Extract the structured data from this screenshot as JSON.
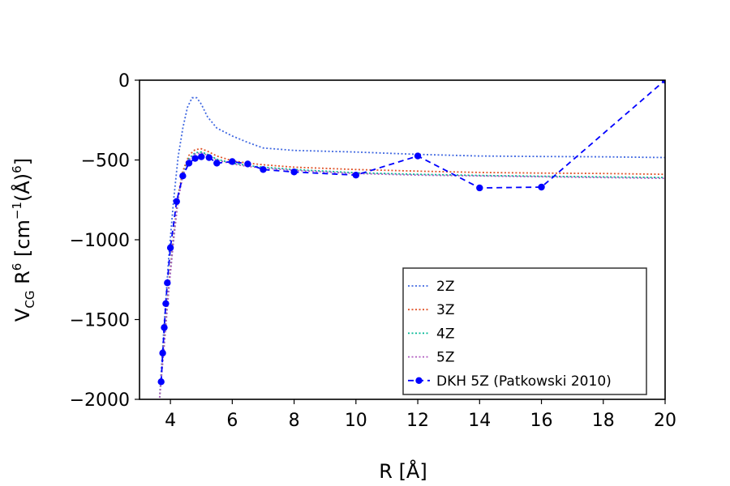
{
  "chart_data": {
    "type": "line",
    "xlabel": "R [Å]",
    "ylabel": "V_CG R^6 [cm^-1 (Å)^6]",
    "xlim": [
      3.0,
      20.0
    ],
    "ylim": [
      -2000,
      0
    ],
    "xticks": [
      4,
      6,
      8,
      10,
      12,
      14,
      16,
      18,
      20
    ],
    "yticks": [
      0,
      -500,
      -1000,
      -1500,
      -2000
    ],
    "xtick_labels": [
      "4",
      "6",
      "8",
      "10",
      "12",
      "14",
      "16",
      "18",
      "20"
    ],
    "ytick_labels": [
      "0",
      "−500",
      "−1000",
      "−1500",
      "−2000"
    ],
    "legend_position": "lower-right",
    "series": [
      {
        "name": "2Z",
        "color": "#4169e1",
        "style": "dotted",
        "x": [
          3.65,
          3.8,
          3.95,
          4.1,
          4.25,
          4.4,
          4.55,
          4.7,
          4.85,
          5.0,
          5.2,
          5.5,
          6.0,
          6.5,
          7.0,
          8.0,
          10.0,
          12.0,
          14.0,
          16.0,
          18.0,
          20.0
        ],
        "y": [
          -1990,
          -1520,
          -1100,
          -760,
          -480,
          -300,
          -170,
          -110,
          -110,
          -150,
          -230,
          -300,
          -350,
          -390,
          -425,
          -440,
          -450,
          -465,
          -475,
          -478,
          -480,
          -485
        ]
      },
      {
        "name": "3Z",
        "color": "#e0552b",
        "style": "dotted",
        "x": [
          3.65,
          3.8,
          3.95,
          4.1,
          4.25,
          4.4,
          4.6,
          4.8,
          5.0,
          5.2,
          5.5,
          6.0,
          6.5,
          7.0,
          8.0,
          10.0,
          12.0,
          14.0,
          16.0,
          18.0,
          20.0
        ],
        "y": [
          -1990,
          -1620,
          -1270,
          -980,
          -720,
          -570,
          -470,
          -435,
          -430,
          -445,
          -475,
          -505,
          -520,
          -530,
          -545,
          -560,
          -570,
          -578,
          -582,
          -585,
          -590
        ]
      },
      {
        "name": "4Z",
        "color": "#00b894",
        "style": "dotted",
        "x": [
          3.65,
          3.8,
          3.95,
          4.1,
          4.25,
          4.4,
          4.6,
          4.8,
          5.0,
          5.2,
          5.5,
          6.0,
          6.5,
          7.0,
          8.0,
          10.0,
          12.0,
          14.0,
          16.0,
          18.0,
          20.0
        ],
        "y": [
          -1990,
          -1650,
          -1300,
          -1000,
          -740,
          -590,
          -490,
          -455,
          -450,
          -465,
          -495,
          -520,
          -535,
          -545,
          -560,
          -580,
          -590,
          -597,
          -602,
          -606,
          -610
        ]
      },
      {
        "name": "5Z",
        "color": "#b05cc0",
        "style": "dotted",
        "x": [
          3.65,
          3.8,
          3.95,
          4.1,
          4.25,
          4.4,
          4.6,
          4.8,
          5.0,
          5.2,
          5.5,
          6.0,
          6.5,
          7.0,
          8.0,
          10.0,
          12.0,
          14.0,
          16.0,
          18.0,
          20.0
        ],
        "y": [
          -1990,
          -1660,
          -1310,
          -1010,
          -750,
          -600,
          -500,
          -462,
          -456,
          -470,
          -500,
          -525,
          -540,
          -550,
          -565,
          -585,
          -595,
          -600,
          -605,
          -610,
          -615
        ]
      },
      {
        "name": "DKH 5Z (Patkowski 2010)",
        "color": "#0000ff",
        "style": "dashed-markers",
        "x": [
          3.7,
          3.75,
          3.8,
          3.85,
          3.9,
          4.0,
          4.2,
          4.4,
          4.6,
          4.8,
          5.0,
          5.25,
          5.5,
          6.0,
          6.5,
          7.0,
          8.0,
          10.0,
          12.0,
          14.0,
          16.0,
          20.0
        ],
        "y": [
          -1890,
          -1710,
          -1550,
          -1400,
          -1270,
          -1050,
          -760,
          -600,
          -520,
          -490,
          -480,
          -485,
          -520,
          -510,
          -525,
          -560,
          -575,
          -595,
          -475,
          -675,
          -670,
          0
        ]
      }
    ]
  }
}
